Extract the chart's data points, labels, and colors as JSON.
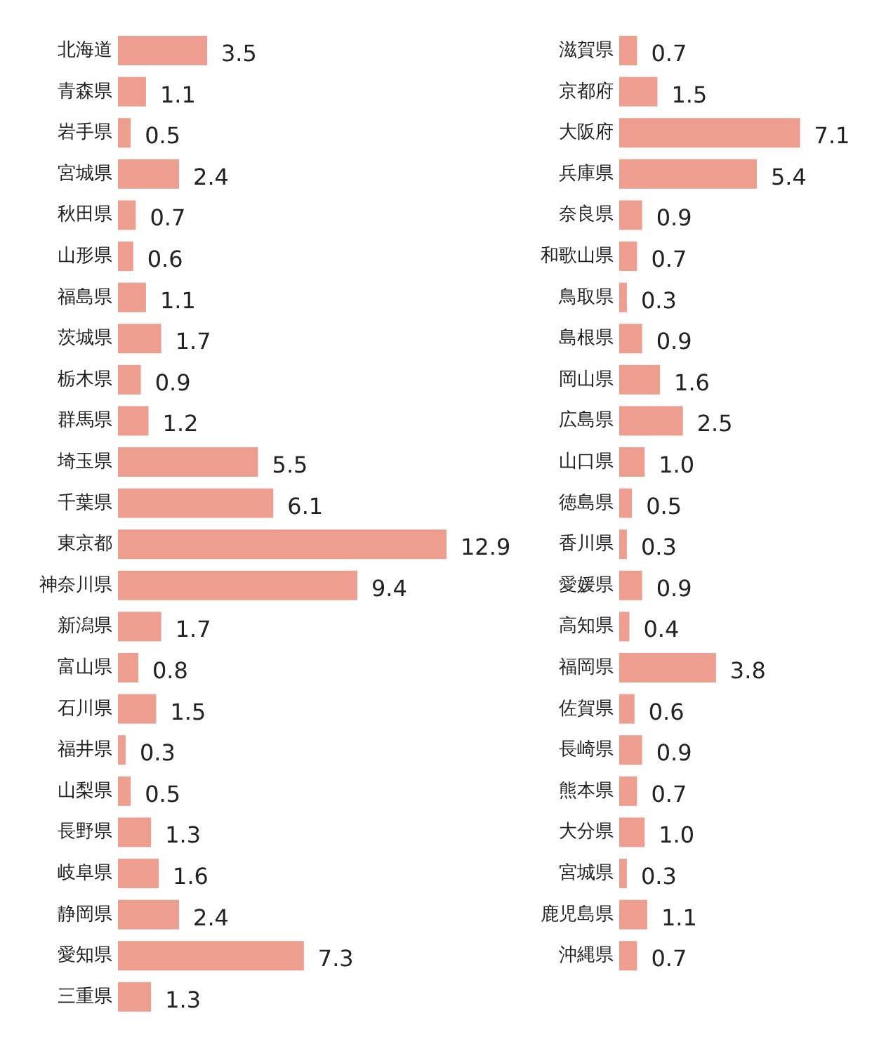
{
  "chart_data": [
    {
      "type": "bar",
      "orientation": "horizontal",
      "data_labels": true,
      "color": "#ee9e8e",
      "categories": [
        "北海道",
        "青森県",
        "岩手県",
        "宮城県",
        "秋田県",
        "山形県",
        "福島県",
        "茨城県",
        "栃木県",
        "群馬県",
        "埼玉県",
        "千葉県",
        "東京都",
        "神奈川県",
        "新潟県",
        "富山県",
        "石川県",
        "福井県",
        "山梨県",
        "長野県",
        "岐阜県",
        "静岡県",
        "愛知県",
        "三重県"
      ],
      "values": [
        3.5,
        1.1,
        0.5,
        2.4,
        0.7,
        0.6,
        1.1,
        1.7,
        0.9,
        1.2,
        5.5,
        6.1,
        12.9,
        9.4,
        1.7,
        0.8,
        1.5,
        0.3,
        0.5,
        1.3,
        1.6,
        2.4,
        7.3,
        1.3
      ]
    },
    {
      "type": "bar",
      "orientation": "horizontal",
      "color": "#ee9e8e",
      "value_labels": [
        "0.7",
        "1.5",
        "7.1",
        "5.4",
        "0.9",
        "0.7",
        "0.3",
        "0.9",
        "1.6",
        "2.5",
        "1.0",
        "0.5",
        "0.3",
        "0.9",
        "0.4",
        "3.8",
        "0.6",
        "0.9",
        "0.7",
        "1.0",
        "0.3",
        "1.1",
        "0.7"
      ],
      "categories": [
        "滋賀県",
        "京都府",
        "大阪府",
        "兵庫県",
        "奈良県",
        "和歌山県",
        "鳥取県",
        "島根県",
        "岡山県",
        "広島県",
        "山口県",
        "徳島県",
        "香川県",
        "愛媛県",
        "高知県",
        "福岡県",
        "佐賀県",
        "長崎県",
        "熊本県",
        "大分県",
        "宮城県",
        "鹿児島県",
        "沖縄県"
      ],
      "values": [
        0.7,
        1.5,
        7.1,
        5.4,
        0.9,
        0.7,
        0.3,
        0.9,
        1.6,
        2.5,
        1.0,
        0.5,
        0.3,
        0.9,
        0.4,
        3.8,
        0.6,
        0.9,
        0.7,
        1.0,
        0.3,
        1.1,
        0.7
      ]
    }
  ]
}
